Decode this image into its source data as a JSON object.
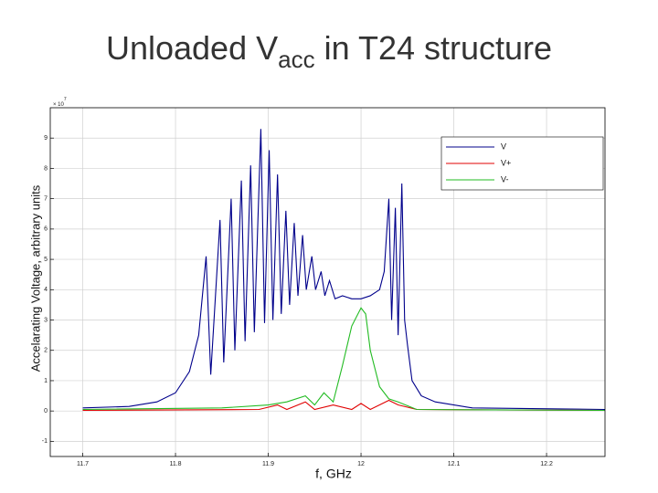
{
  "chart_data": {
    "type": "line",
    "title_main": "Unloaded V",
    "title_sub": "acc",
    "title_rest": " in T24 structure",
    "y_multiplier": {
      "base": "× 10",
      "exponent": "7"
    },
    "xlabel": "f, GHz",
    "ylabel": "Accelarating Voltage, arbitrary units",
    "xlim": [
      11.665,
      12.263
    ],
    "ylim": [
      -1.5,
      10
    ],
    "xticks": [
      11.7,
      11.8,
      11.9,
      12,
      12.1,
      12.2
    ],
    "yticks": [
      -1,
      0,
      1,
      2,
      3,
      4,
      5,
      6,
      7,
      8,
      9
    ],
    "grid": true,
    "legend": "upper right",
    "series": [
      {
        "name": "V",
        "color": "#00008b",
        "x": [
          11.7,
          11.75,
          11.78,
          11.8,
          11.815,
          11.825,
          11.833,
          11.838,
          11.848,
          11.852,
          11.86,
          11.864,
          11.871,
          11.875,
          11.881,
          11.885,
          11.892,
          11.896,
          11.901,
          11.905,
          11.91,
          11.914,
          11.919,
          11.923,
          11.928,
          11.932,
          11.937,
          11.941,
          11.947,
          11.951,
          11.957,
          11.961,
          11.966,
          11.972,
          11.98,
          11.99,
          12.0,
          12.01,
          12.02,
          12.025,
          12.03,
          12.033,
          12.037,
          12.04,
          12.044,
          12.047,
          12.05,
          12.055,
          12.065,
          12.08,
          12.12,
          12.263
        ],
        "values": [
          0.1,
          0.15,
          0.3,
          0.6,
          1.3,
          2.5,
          5.1,
          1.2,
          6.3,
          1.6,
          7.0,
          2.0,
          7.6,
          2.3,
          8.1,
          2.6,
          9.3,
          2.9,
          8.6,
          3.0,
          7.8,
          3.2,
          6.6,
          3.5,
          6.2,
          3.8,
          5.8,
          4.0,
          5.1,
          4.0,
          4.6,
          3.8,
          4.3,
          3.7,
          3.8,
          3.7,
          3.7,
          3.8,
          4.0,
          4.6,
          7.0,
          3.0,
          6.7,
          2.5,
          7.5,
          3.0,
          2.2,
          1.0,
          0.5,
          0.3,
          0.1,
          0.05
        ]
      },
      {
        "name": "V+",
        "color": "#e00000",
        "x": [
          11.7,
          11.89,
          11.91,
          11.92,
          11.94,
          11.95,
          11.97,
          11.99,
          12.0,
          12.01,
          12.03,
          12.04,
          12.06,
          12.263
        ],
        "values": [
          0.02,
          0.05,
          0.2,
          0.05,
          0.3,
          0.05,
          0.2,
          0.05,
          0.25,
          0.05,
          0.35,
          0.2,
          0.05,
          0.02
        ]
      },
      {
        "name": "V-",
        "color": "#22bb22",
        "x": [
          11.7,
          11.85,
          11.9,
          11.92,
          11.94,
          11.95,
          11.96,
          11.97,
          11.98,
          11.99,
          12.0,
          12.005,
          12.01,
          12.02,
          12.03,
          12.04,
          12.06,
          12.263
        ],
        "values": [
          0.05,
          0.1,
          0.2,
          0.3,
          0.5,
          0.2,
          0.6,
          0.3,
          1.5,
          2.8,
          3.4,
          3.2,
          2.0,
          0.8,
          0.4,
          0.3,
          0.05,
          0.02
        ]
      }
    ]
  }
}
